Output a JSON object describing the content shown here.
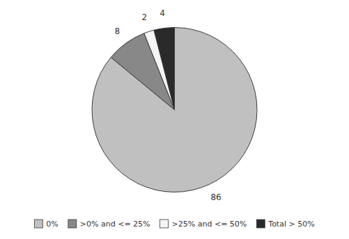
{
  "chart_data": {
    "type": "pie",
    "categories": [
      "0%",
      ">0% and <= 25%",
      ">25% and <= 50%",
      "Total > 50%"
    ],
    "values": [
      86,
      8,
      2,
      4
    ],
    "colors": [
      "#c0c0c0",
      "#888888",
      "#f5f5f5",
      "#2a2a2a"
    ],
    "data_labels": true,
    "legend": "bottom"
  }
}
